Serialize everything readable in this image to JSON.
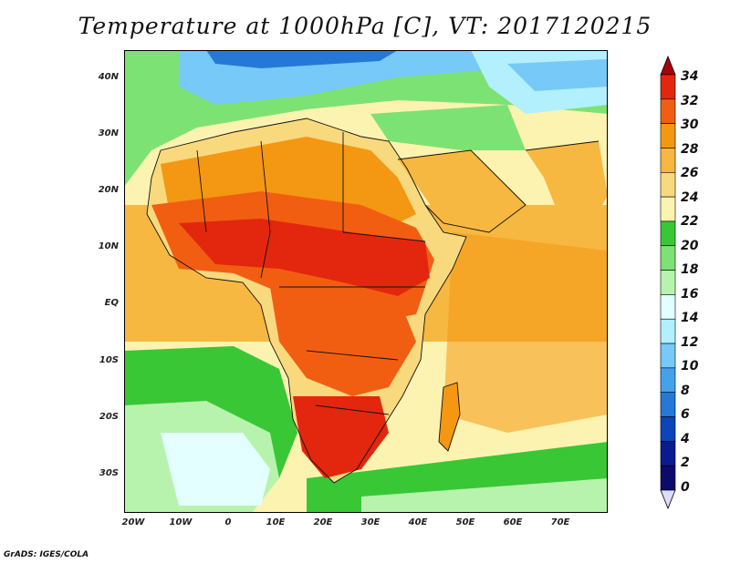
{
  "title": "Temperature at 1000hPa [C], VT: 2017120215",
  "credit": "GrADS: IGES/COLA",
  "map": {
    "variable": "Temperature at 1000hPa",
    "units": "C",
    "valid_time": "2017120215",
    "lon_range": [
      -22,
      80
    ],
    "lat_range": [
      -37,
      45
    ],
    "lat_ticks": [
      "40N",
      "30N",
      "20N",
      "10N",
      "EQ",
      "10S",
      "20S",
      "30S"
    ],
    "lon_ticks": [
      "20W",
      "10W",
      "0",
      "10E",
      "20E",
      "30E",
      "40E",
      "50E",
      "60E",
      "70E"
    ]
  },
  "colorbar": {
    "labels": [
      "34",
      "32",
      "30",
      "28",
      "26",
      "24",
      "22",
      "20",
      "18",
      "16",
      "14",
      "12",
      "10",
      "8",
      "6",
      "4",
      "2",
      "0"
    ],
    "colors": [
      "#a8000c",
      "#e2270e",
      "#f15e12",
      "#f49712",
      "#f6b840",
      "#f9d97e",
      "#fdf3b0",
      "#39c735",
      "#7de274",
      "#b7f3ac",
      "#e4ffff",
      "#b1f0fc",
      "#77c9f7",
      "#46a1ec",
      "#2678d6",
      "#0c45b7",
      "#0a1b91",
      "#0c0a6b",
      "#dcdcfc"
    ]
  }
}
